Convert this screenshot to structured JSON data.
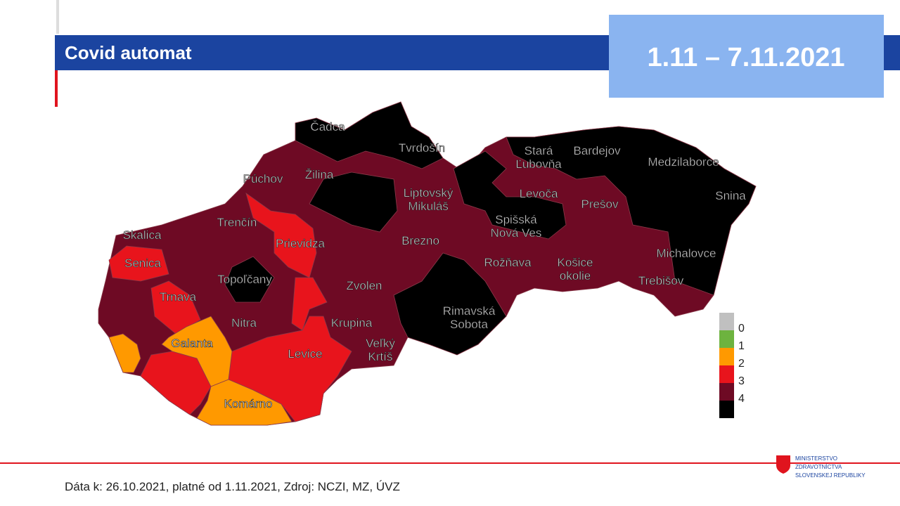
{
  "header": {
    "title": "Covid automat",
    "period": "1.11 – 7.11.2021"
  },
  "map": {
    "districts": [
      [
        "Čadca"
      ],
      [
        "Tvrdošín"
      ],
      [
        "Stará",
        "Ľubovňa"
      ],
      [
        "Bardejov"
      ],
      [
        "Medzilaborce"
      ],
      [
        "Púchov"
      ],
      [
        "Žilina"
      ],
      [
        "Levoča"
      ],
      [
        "Snina"
      ],
      [
        "Liptovský",
        "Mikuláš"
      ],
      [
        "Prešov"
      ],
      [
        "Trenčín"
      ],
      [
        "Spišská",
        "Nová Ves"
      ],
      [
        "Skalica"
      ],
      [
        "Prievidza"
      ],
      [
        "Brezno"
      ],
      [
        "Michalovce"
      ],
      [
        "Senica"
      ],
      [
        "Rožňava"
      ],
      [
        "Košice",
        "okolie"
      ],
      [
        "Topoľčany"
      ],
      [
        "Trebišov"
      ],
      [
        "Zvolen"
      ],
      [
        "Trnava"
      ],
      [
        "Rimavská",
        "Sobota"
      ],
      [
        "Nitra"
      ],
      [
        "Krupina"
      ],
      [
        "Galanta"
      ],
      [
        "Veľký",
        "Krtíš"
      ],
      [
        "Levice"
      ],
      [
        "Komárno"
      ]
    ]
  },
  "legend": {
    "items": [
      {
        "color": "#c0c0c0",
        "label": "0"
      },
      {
        "color": "#6db33f",
        "label": "1"
      },
      {
        "color": "#ff9900",
        "label": "2"
      },
      {
        "color": "#e8141c",
        "label": "3"
      },
      {
        "color": "#6e0a24",
        "label": "4"
      },
      {
        "color": "#000000",
        "label": null
      }
    ]
  },
  "footer": {
    "source": "Dáta k: 26.10.2021, platné od 1.11.2021, Zdroj: NCZI, MZ, ÚVZ",
    "logo": [
      "MINISTERSTVO",
      "ZDRAVOTNÍCTVA",
      "SLOVENSKEJ REPUBLIKY"
    ]
  }
}
